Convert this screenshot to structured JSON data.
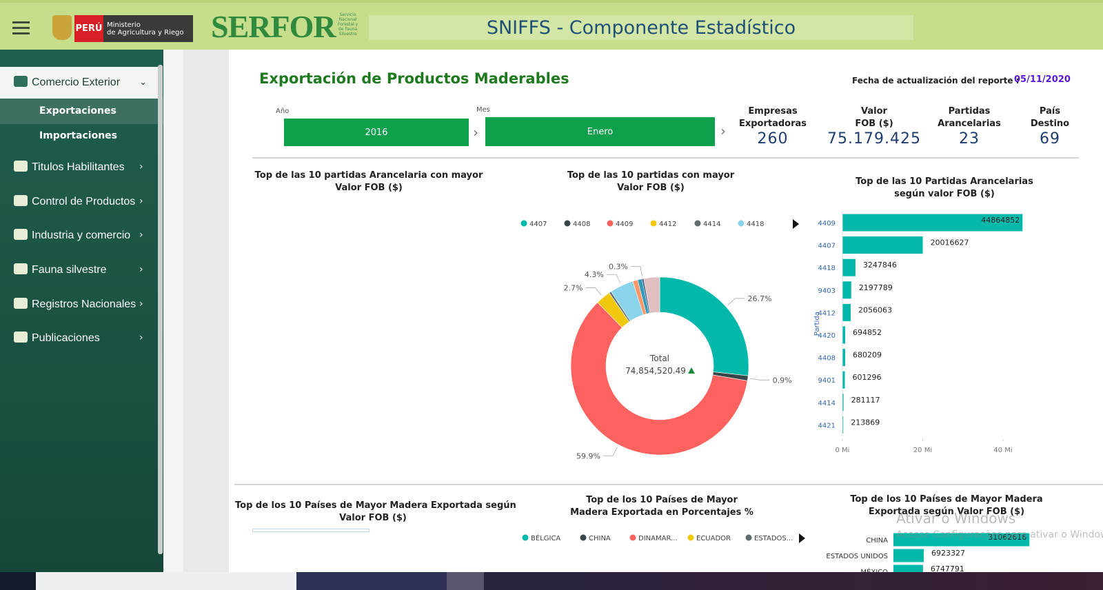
{
  "header": {
    "ministry_badge": "PERÚ",
    "ministry_name": [
      "Ministerio",
      "de Agricultura y Riego"
    ],
    "brand": "SERFOR",
    "brand_tagline": [
      "Servicio",
      "Nacional",
      "Forestal y",
      "de Fauna",
      "Silvestre"
    ],
    "title": "SNIFFS - Componente Estadístico"
  },
  "sidebar": {
    "items": [
      {
        "label": "Comercio Exterior",
        "children": [
          "Exportaciones",
          "Importaciones"
        ]
      },
      {
        "label": "Titulos Habilitantes"
      },
      {
        "label": "Control de Productos"
      },
      {
        "label": "Industria y comercio"
      },
      {
        "label": "Fauna silvestre"
      },
      {
        "label": "Registros Nacionales"
      },
      {
        "label": "Publicaciones"
      }
    ]
  },
  "report": {
    "title": "Exportación de Productos Maderables",
    "update_label": "Fecha de actualización del reporte :",
    "update_date": "05/11/2020",
    "filters": [
      {
        "label": "Año",
        "value": "2016"
      },
      {
        "label": "Mes",
        "value": "Enero"
      }
    ],
    "kpis": [
      {
        "label": [
          "Empresas",
          "Exportadoras"
        ],
        "value": "260"
      },
      {
        "label": [
          "Valor",
          "FOB ($)"
        ],
        "value": "75.179.425"
      },
      {
        "label": [
          "Partidas",
          "Arancelarias"
        ],
        "value": "23"
      },
      {
        "label": [
          "País",
          "Destino"
        ],
        "value": "69"
      }
    ]
  },
  "panels": {
    "top_left_title": [
      "Top de las 10 partidas Arancelaria con mayor",
      "Valor FOB ($)"
    ],
    "bottom_left_title": [
      "Top de los 10 Países de Mayor Madera Exportada según",
      "Valor FOB ($)"
    ],
    "bottom_middle_title": [
      "Top de los 10 Países de Mayor",
      "Madera Exportada en Porcentajes %"
    ],
    "bottom_middle_legend": [
      {
        "name": "BÉLGICA",
        "color": "#01b8aa"
      },
      {
        "name": "CHINA",
        "color": "#374649"
      },
      {
        "name": "DINAMAR...",
        "color": "#fd625e"
      },
      {
        "name": "ECUADOR",
        "color": "#f2c80f"
      },
      {
        "name": "ESTADOS...",
        "color": "#5f6b6d"
      }
    ]
  },
  "chart_data": [
    {
      "type": "pie",
      "donut": true,
      "title": [
        "Top de las 10 partidas con mayor",
        "Valor FOB ($)"
      ],
      "center_label": "Total",
      "center_value": "74,854,520.49",
      "categories": [
        "4407",
        "4408",
        "4409",
        "4412",
        "4414",
        "4418",
        null,
        null,
        null,
        null
      ],
      "values": [
        26.7,
        0.9,
        59.9,
        2.7,
        0.4,
        4.3,
        0.9,
        0.8,
        0.3,
        2.9
      ],
      "value_labels": [
        "26.7%",
        "0.9%",
        "59.9%",
        "2.7%",
        null,
        "4.3%",
        null,
        null,
        "0.3%",
        null
      ],
      "colors": [
        "#01b8aa",
        "#374649",
        "#fd625e",
        "#f2c80f",
        "#5f6b6d",
        "#8ad4eb",
        "#fe9666",
        "#3599b8",
        "#2c4f7c",
        "#dfbfbf"
      ]
    },
    {
      "type": "bar",
      "orientation": "horizontal",
      "title": [
        "Top de las 10 Partidas Arancelarias",
        "según valor FOB ($)"
      ],
      "y_label": "Partida",
      "categories": [
        "4409",
        "4407",
        "4418",
        "9403",
        "4412",
        "4420",
        "4408",
        "9401",
        "4414",
        "4421"
      ],
      "values": [
        44864852,
        20016627,
        3247846,
        2197789,
        2056063,
        694852,
        680209,
        601296,
        281117,
        213869
      ],
      "color": "#01b8aa",
      "xlim": [
        0,
        46000000
      ],
      "xticks": [
        {
          "value": 0,
          "label": "0 Mi"
        },
        {
          "value": 20000000,
          "label": "20 Mi"
        },
        {
          "value": 40000000,
          "label": "40 Mi"
        }
      ]
    },
    {
      "type": "bar",
      "orientation": "horizontal",
      "title": [
        "Top de los 10 Países de Mayor Madera",
        "Exportada según Valor FOB ($)"
      ],
      "categories": [
        "CHINA",
        "ESTADOS UNIDOS",
        "MÉXICO"
      ],
      "values": [
        31062616,
        6923327,
        6747791
      ],
      "color": "#01b8aa",
      "xlim": [
        0,
        40000000
      ]
    }
  ],
  "overlay": {
    "watermark_title": "Ativar o Windows",
    "watermark_text": "Acesse Configurações para ativar o Windows"
  }
}
